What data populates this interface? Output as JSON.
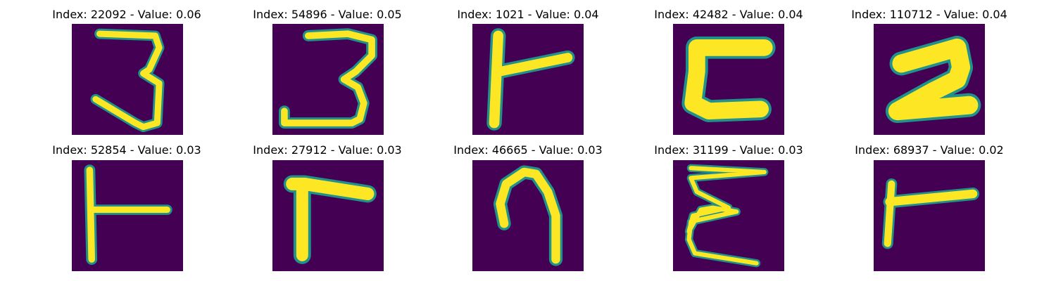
{
  "panels": [
    {
      "title": "Index: 22092 - Value: 0.06",
      "glyph": "three-handwritten"
    },
    {
      "title": "Index: 54896 - Value: 0.05",
      "glyph": "three-handwritten"
    },
    {
      "title": "Index: 1021 - Value: 0.04",
      "glyph": "tee-rotated"
    },
    {
      "title": "Index: 42482 - Value: 0.04",
      "glyph": "c-shape-bold"
    },
    {
      "title": "Index: 110712 - Value: 0.04",
      "glyph": "z-shape-bold"
    },
    {
      "title": "Index: 52854 - Value: 0.03",
      "glyph": "tee-rotated-thin"
    },
    {
      "title": "Index: 27912 - Value: 0.03",
      "glyph": "l-shape-inverted"
    },
    {
      "title": "Index: 46665 - Value: 0.03",
      "glyph": "arch-shape"
    },
    {
      "title": "Index: 31199 - Value: 0.03",
      "glyph": "e-shape-wavy"
    },
    {
      "title": "Index: 68937 - Value: 0.02",
      "glyph": "tee-rotated-short"
    }
  ],
  "colors": {
    "background": "#440154",
    "stroke": "#fde725",
    "edge": "#21918c"
  }
}
